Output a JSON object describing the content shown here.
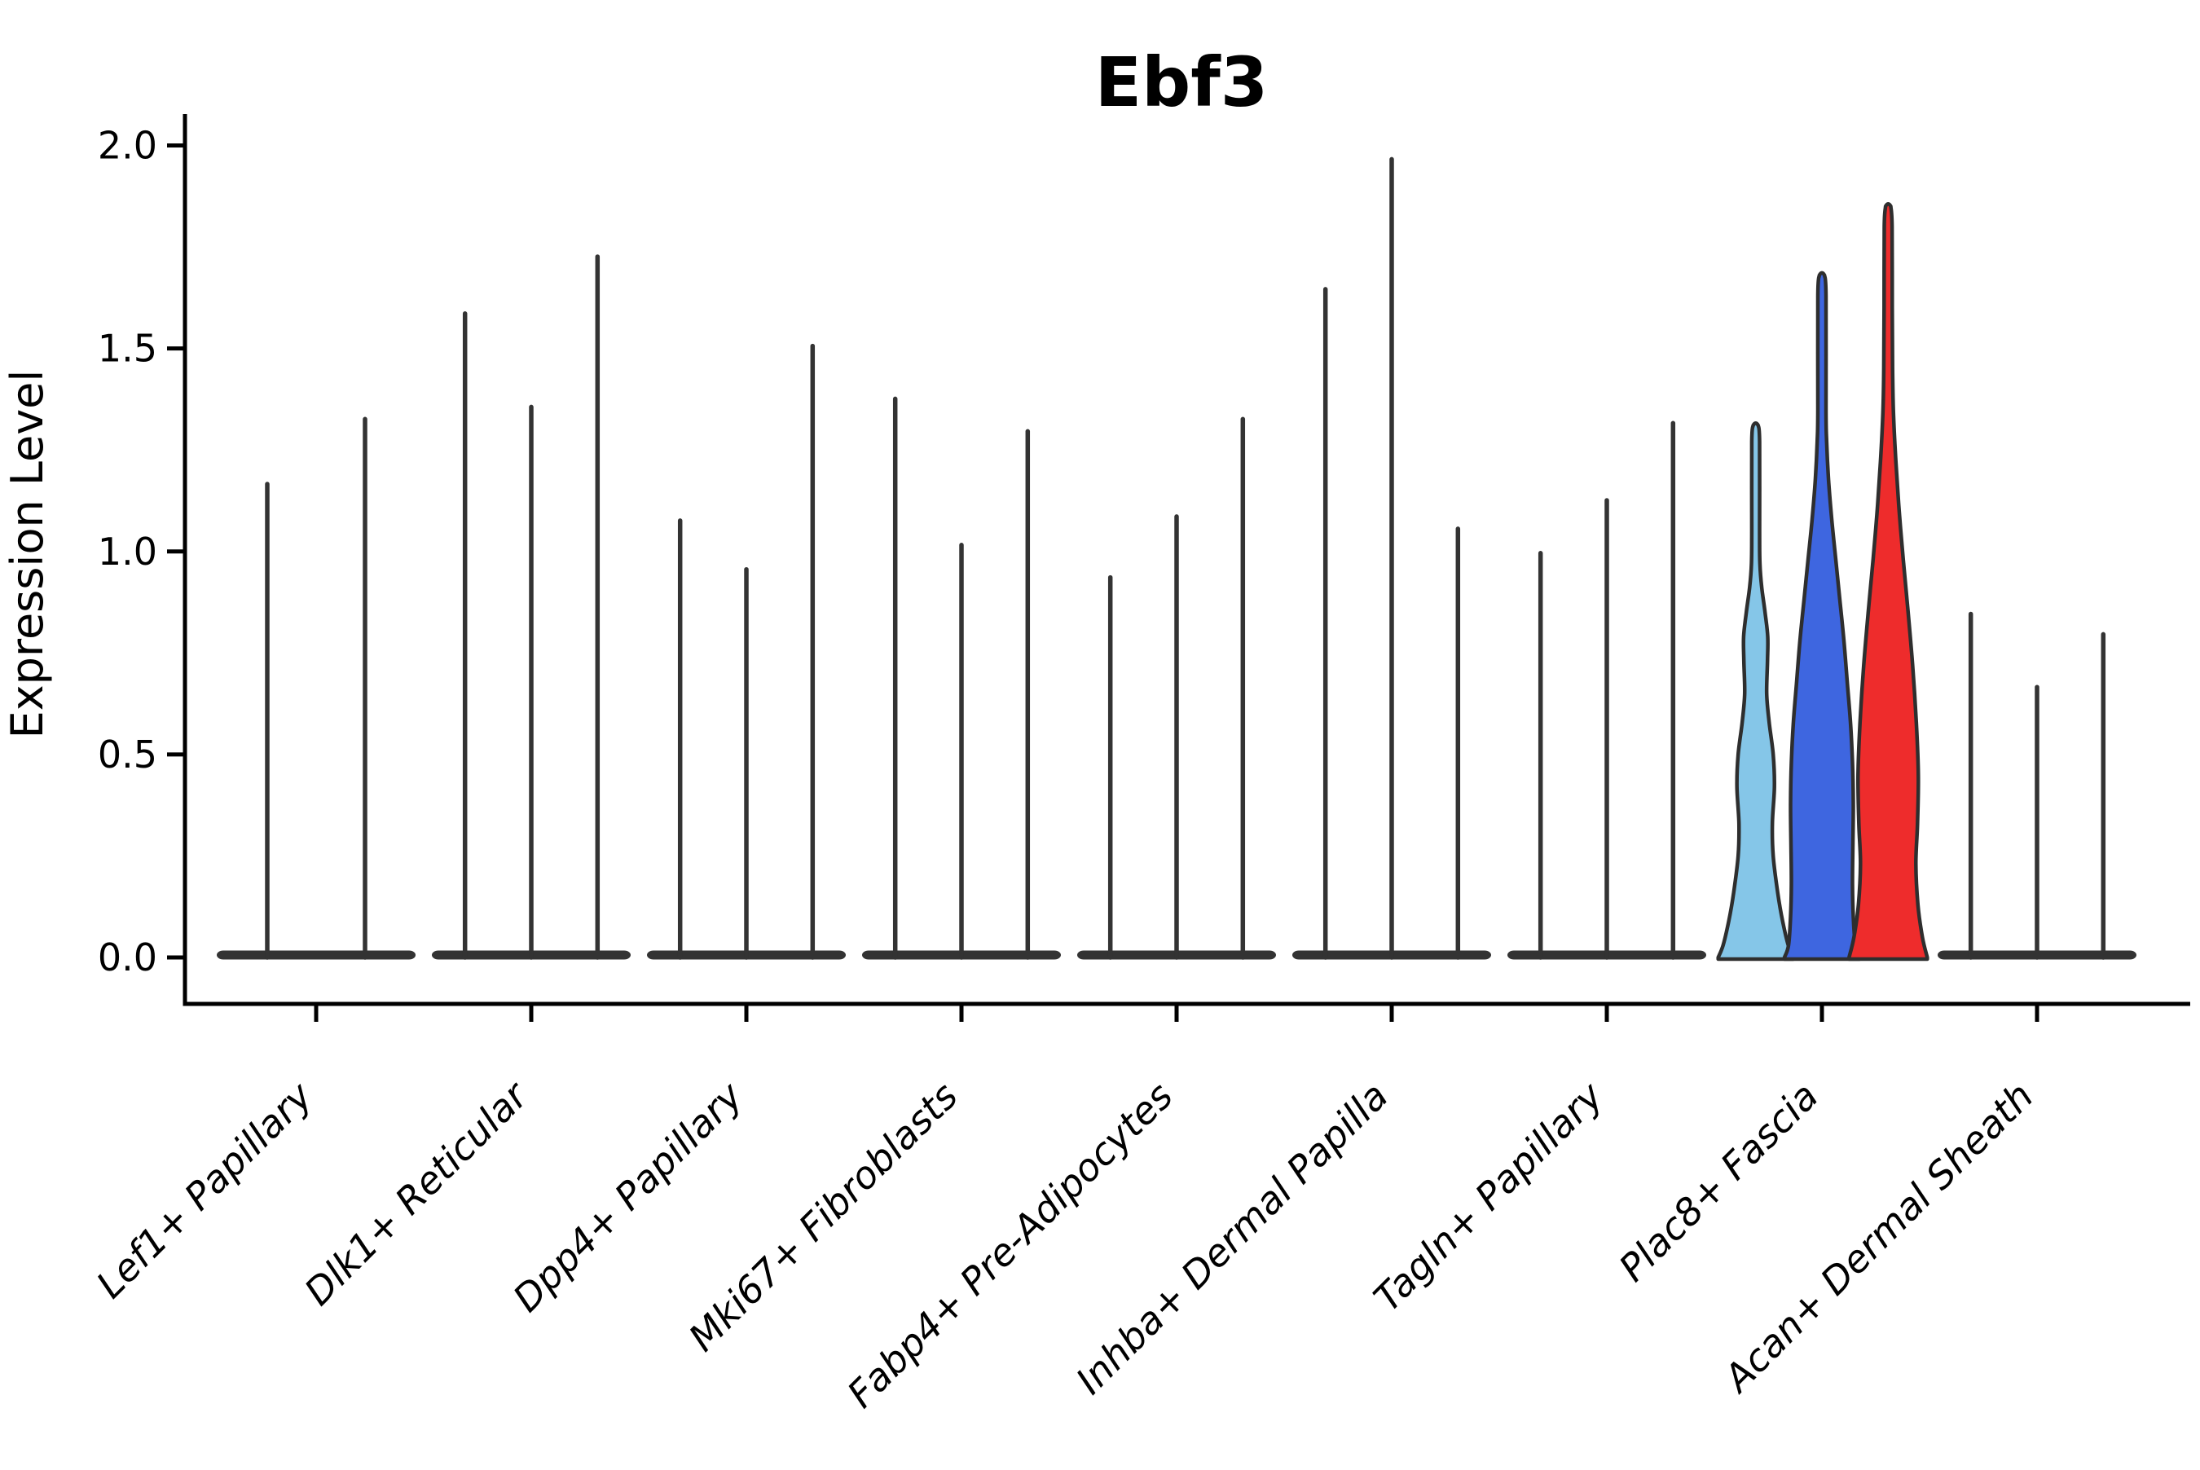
{
  "title": "Ebf3",
  "ylabel": "Expression Level",
  "colors": {
    "background": "#ffffff",
    "axis": "#000000",
    "spike": "#333333",
    "violin_outline": "#2e2e2e",
    "highlight_lightblue": "#85C6E8",
    "highlight_blue": "#3E66E0",
    "highlight_red": "#EE2C2C"
  },
  "chart_data": {
    "type": "violin",
    "title": "Ebf3",
    "xlabel": "",
    "ylabel": "Expression Level",
    "ylim": [
      0,
      2.05
    ],
    "yticks": [
      0.0,
      0.5,
      1.0,
      1.5,
      2.0
    ],
    "ytick_labels": [
      "0.0",
      "0.5",
      "1.0",
      "1.5",
      "2.0"
    ],
    "grid": false,
    "legend": "none",
    "categories": [
      "Lef1+ Papillary",
      "Dlk1+ Reticular",
      "Dpp4+ Papillary",
      "Mki67+ Fibroblasts",
      "Fabp4+ Pre-Adipocytes",
      "Inhba+ Dermal Papilla",
      "Tagln+ Papillary",
      "Plac8+ Fascia",
      "Acan+ Dermal Sheath"
    ],
    "groups": [
      {
        "category": "Lef1+ Papillary",
        "violins": [
          {
            "kind": "spike",
            "max": 1.17
          },
          {
            "kind": "spike",
            "max": 1.33
          }
        ]
      },
      {
        "category": "Dlk1+ Reticular",
        "violins": [
          {
            "kind": "spike",
            "max": 1.59
          },
          {
            "kind": "spike",
            "max": 1.36
          },
          {
            "kind": "spike",
            "max": 1.73
          }
        ]
      },
      {
        "category": "Dpp4+ Papillary",
        "violins": [
          {
            "kind": "spike",
            "max": 1.08
          },
          {
            "kind": "spike",
            "max": 0.96
          },
          {
            "kind": "spike",
            "max": 1.51
          }
        ]
      },
      {
        "category": "Mki67+ Fibroblasts",
        "violins": [
          {
            "kind": "spike",
            "max": 1.38
          },
          {
            "kind": "spike",
            "max": 1.02
          },
          {
            "kind": "spike",
            "max": 1.3
          }
        ]
      },
      {
        "category": "Fabp4+ Pre-Adipocytes",
        "violins": [
          {
            "kind": "spike",
            "max": 0.94
          },
          {
            "kind": "spike",
            "max": 1.09
          },
          {
            "kind": "spike",
            "max": 1.33
          }
        ]
      },
      {
        "category": "Inhba+ Dermal Papilla",
        "violins": [
          {
            "kind": "spike",
            "max": 1.65
          },
          {
            "kind": "spike",
            "max": 1.97
          },
          {
            "kind": "spike",
            "max": 1.06
          }
        ]
      },
      {
        "category": "Tagln+ Papillary",
        "violins": [
          {
            "kind": "spike",
            "max": 1.0
          },
          {
            "kind": "spike",
            "max": 1.13
          },
          {
            "kind": "spike",
            "max": 1.32
          }
        ]
      },
      {
        "category": "Plac8+ Fascia",
        "violins": [
          {
            "kind": "violin",
            "max": 1.31,
            "fill": "#85C6E8",
            "profile": [
              [
                0,
                46
              ],
              [
                0.03,
                40
              ],
              [
                0.09,
                33
              ],
              [
                0.16,
                27
              ],
              [
                0.25,
                21.5
              ],
              [
                0.33,
                20.5
              ],
              [
                0.42,
                23
              ],
              [
                0.5,
                21.5
              ],
              [
                0.58,
                16.5
              ],
              [
                0.65,
                13.5
              ],
              [
                0.73,
                14.5
              ],
              [
                0.79,
                14.8
              ],
              [
                0.85,
                11.5
              ],
              [
                0.91,
                7.5
              ],
              [
                0.97,
                5.2
              ],
              [
                1.05,
                4.8
              ],
              [
                1.27,
                4.8
              ],
              [
                1.31,
                3.2
              ]
            ]
          },
          {
            "kind": "violin",
            "max": 1.68,
            "fill": "#3E66E0",
            "profile": [
              [
                0,
                46
              ],
              [
                0.03,
                41
              ],
              [
                0.1,
                38.5
              ],
              [
                0.18,
                37.5
              ],
              [
                0.28,
                38
              ],
              [
                0.38,
                38.5
              ],
              [
                0.48,
                37.5
              ],
              [
                0.58,
                35
              ],
              [
                0.68,
                31
              ],
              [
                0.78,
                27
              ],
              [
                0.88,
                22
              ],
              [
                0.98,
                17
              ],
              [
                1.08,
                12
              ],
              [
                1.18,
                8
              ],
              [
                1.27,
                5.8
              ],
              [
                1.35,
                5
              ],
              [
                1.63,
                5
              ],
              [
                1.68,
                3.2
              ]
            ]
          },
          {
            "kind": "violin",
            "max": 1.85,
            "fill": "#EE2C2C",
            "profile": [
              [
                0,
                48
              ],
              [
                0.05,
                42
              ],
              [
                0.13,
                36.5
              ],
              [
                0.23,
                34
              ],
              [
                0.33,
                36
              ],
              [
                0.45,
                37
              ],
              [
                0.58,
                34.5
              ],
              [
                0.72,
                30
              ],
              [
                0.85,
                24.5
              ],
              [
                0.98,
                18.5
              ],
              [
                1.1,
                13.5
              ],
              [
                1.22,
                9.5
              ],
              [
                1.34,
                6.5
              ],
              [
                1.45,
                5.4
              ],
              [
                1.6,
                5
              ],
              [
                1.8,
                4.8
              ],
              [
                1.85,
                3.2
              ]
            ]
          }
        ]
      },
      {
        "category": "Acan+ Dermal Sheath",
        "violins": [
          {
            "kind": "spike",
            "max": 0.85
          },
          {
            "kind": "spike",
            "max": 0.67
          },
          {
            "kind": "spike",
            "max": 0.8
          }
        ]
      }
    ]
  }
}
